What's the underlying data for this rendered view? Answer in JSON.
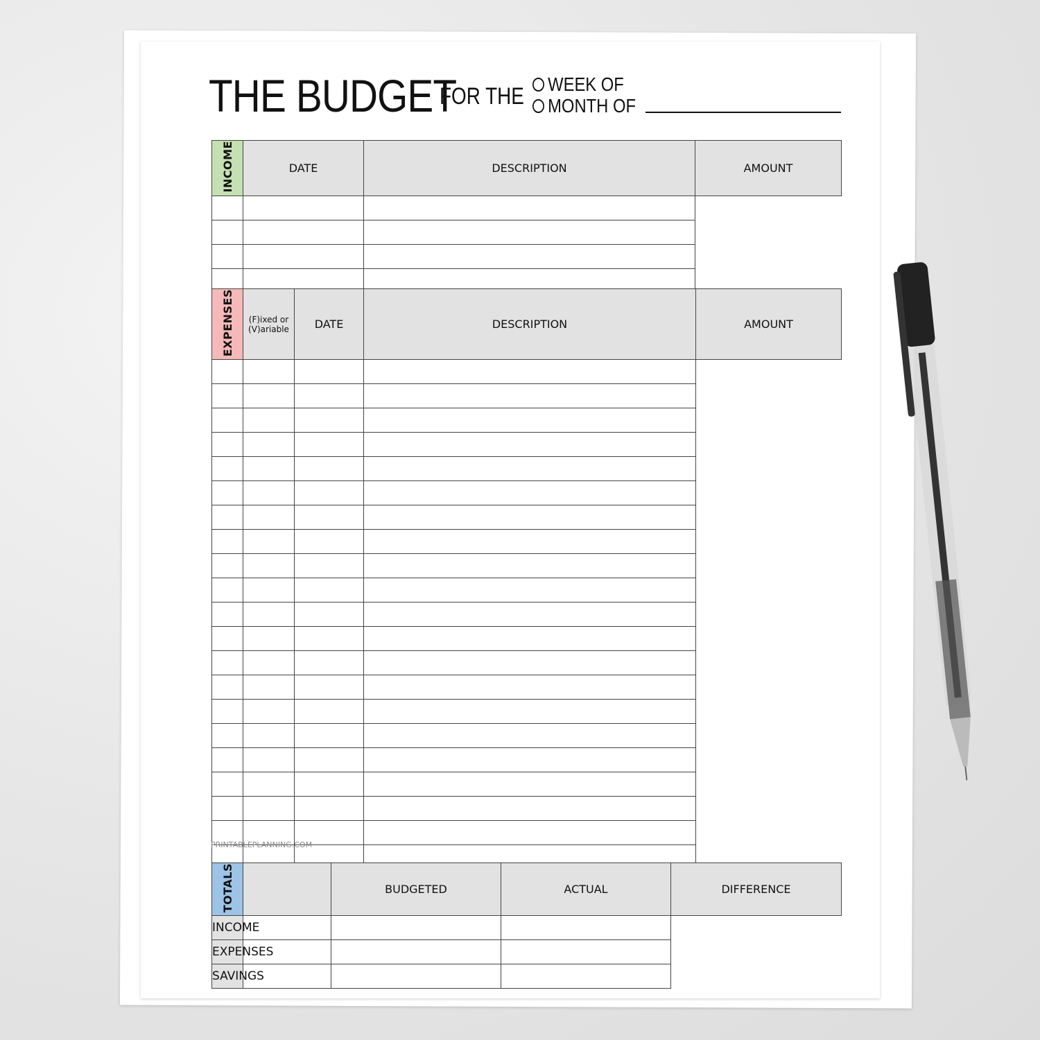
{
  "header": {
    "title": "THE BUDGET",
    "for_the": "FOR THE",
    "option_week": "WEEK OF",
    "option_month": "MONTH OF"
  },
  "colors": {
    "income": "#c5e0b3",
    "expenses": "#f4b9b8",
    "totals": "#9dc3e6",
    "header_fill": "#e2e2e2"
  },
  "income": {
    "label": "INCOME",
    "columns": [
      "DATE",
      "DESCRIPTION",
      "AMOUNT"
    ],
    "row_count": 4
  },
  "expenses": {
    "label": "EXPENSES",
    "columns": [
      "(F)ixed or (V)ariable",
      "DATE",
      "DESCRIPTION",
      "AMOUNT"
    ],
    "row_count": 21
  },
  "footer": "PRINTABLEPLANNING.COM",
  "totals": {
    "label": "TOTALS",
    "columns": [
      "",
      "BUDGETED",
      "ACTUAL",
      "DIFFERENCE"
    ],
    "rows": [
      "INCOME",
      "EXPENSES",
      "SAVINGS"
    ]
  }
}
